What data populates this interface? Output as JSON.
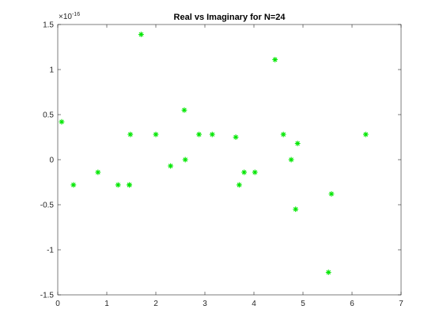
{
  "chart_data": {
    "type": "scatter",
    "title": "Real vs Imaginary for N=24",
    "xlabel": "",
    "ylabel": "",
    "xlim": [
      0,
      7
    ],
    "ylim": [
      -1.5,
      1.5
    ],
    "y_multiplier": {
      "base": "×10",
      "exponent": "-16"
    },
    "x_ticks": [
      "0",
      "1",
      "2",
      "3",
      "4",
      "5",
      "6",
      "7"
    ],
    "x_tick_values": [
      0,
      1,
      2,
      3,
      4,
      5,
      6,
      7
    ],
    "y_ticks": [
      "-1.5",
      "-1",
      "-0.5",
      "0",
      "0.5",
      "1",
      "1.5"
    ],
    "y_tick_values": [
      -1.5,
      -1,
      -0.5,
      0,
      0.5,
      1,
      1.5
    ],
    "grid": false,
    "box": true,
    "marker": "*",
    "color": "#00e600",
    "axis_color": "#262626",
    "series": [
      {
        "x": [
          0.08,
          0.32,
          0.82,
          1.23,
          1.46,
          1.46,
          1.48,
          1.7,
          2.0,
          2.3,
          2.58,
          2.6,
          2.88,
          3.15,
          3.63,
          3.7,
          3.8,
          4.02,
          4.43,
          4.6,
          4.76,
          4.85,
          4.89,
          5.52,
          5.58,
          6.28
        ],
        "y": [
          0.42,
          -0.28,
          -0.14,
          -0.28,
          -0.28,
          -0.28,
          0.28,
          1.39,
          0.28,
          -0.07,
          0.55,
          0.0,
          0.28,
          0.28,
          0.25,
          -0.28,
          -0.14,
          -0.14,
          1.11,
          0.28,
          0.0,
          -0.55,
          0.18,
          -1.25,
          -0.38,
          0.28
        ]
      }
    ]
  }
}
